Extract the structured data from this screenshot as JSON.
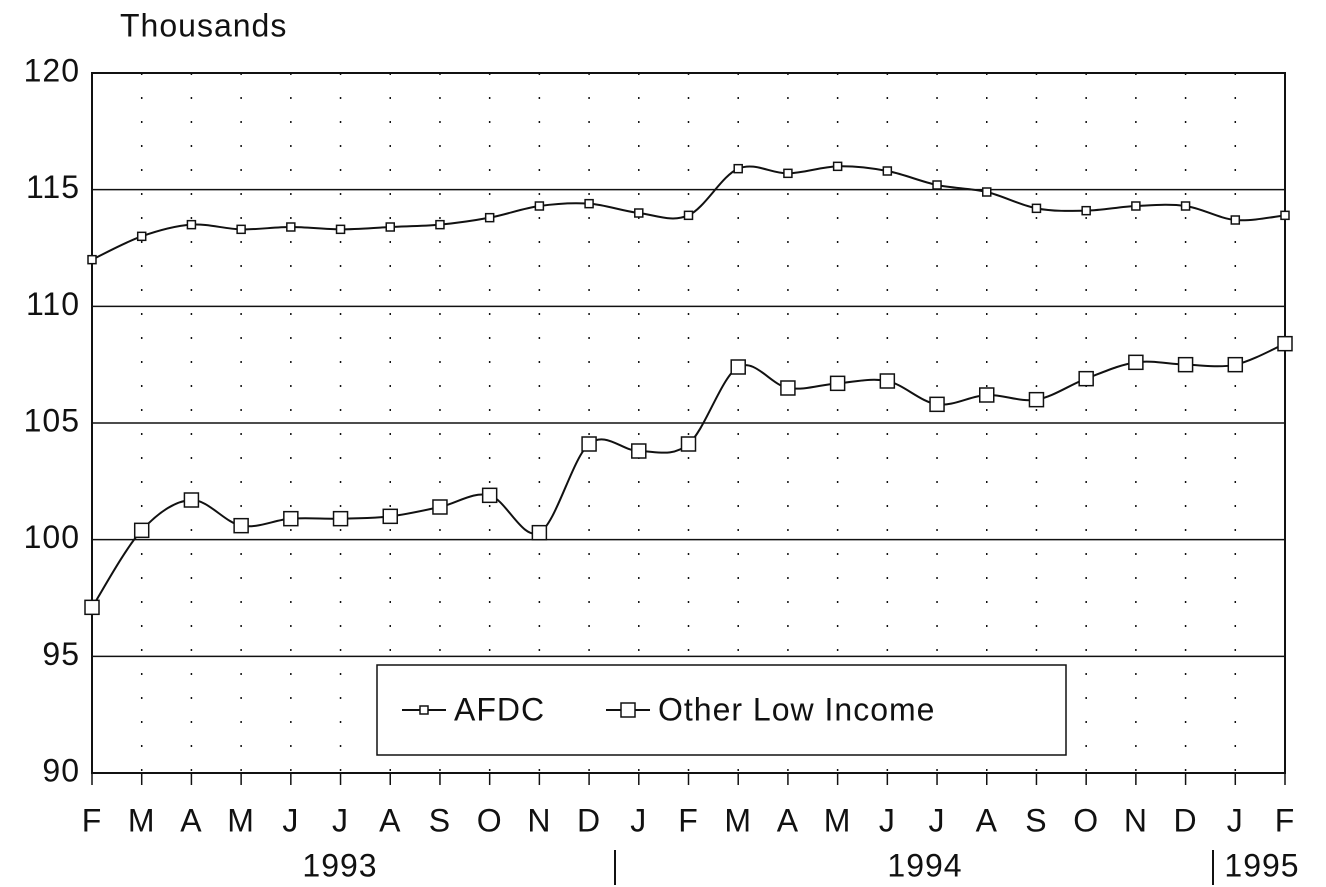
{
  "chart_data": {
    "type": "line",
    "y_label": "Thousands",
    "categories": [
      "F",
      "M",
      "A",
      "M",
      "J",
      "J",
      "A",
      "S",
      "O",
      "N",
      "D",
      "J",
      "F",
      "M",
      "A",
      "M",
      "J",
      "J",
      "A",
      "S",
      "O",
      "N",
      "D",
      "J",
      "F"
    ],
    "years": [
      "1993",
      "1994",
      "1995"
    ],
    "series": [
      {
        "name": "AFDC",
        "color": "#111111",
        "marker": "small-square",
        "values": [
          112.0,
          113.0,
          113.5,
          113.3,
          113.4,
          113.3,
          113.4,
          113.5,
          113.8,
          114.3,
          114.4,
          114.0,
          113.9,
          115.9,
          115.7,
          116.0,
          115.8,
          115.2,
          114.9,
          114.2,
          114.1,
          114.3,
          114.3,
          113.7,
          113.9
        ]
      },
      {
        "name": "Other Low Income",
        "color": "#111111",
        "marker": "large-square",
        "values": [
          97.1,
          100.4,
          101.7,
          100.6,
          100.9,
          100.9,
          101.0,
          101.4,
          101.9,
          100.3,
          104.1,
          103.8,
          104.1,
          107.4,
          106.5,
          106.7,
          106.8,
          105.8,
          106.2,
          106.0,
          106.9,
          107.6,
          107.5,
          107.5,
          108.4
        ]
      }
    ],
    "ylim": [
      90,
      120
    ],
    "yticks": [
      90,
      95,
      100,
      105,
      110,
      115,
      120
    ],
    "grid": true
  }
}
